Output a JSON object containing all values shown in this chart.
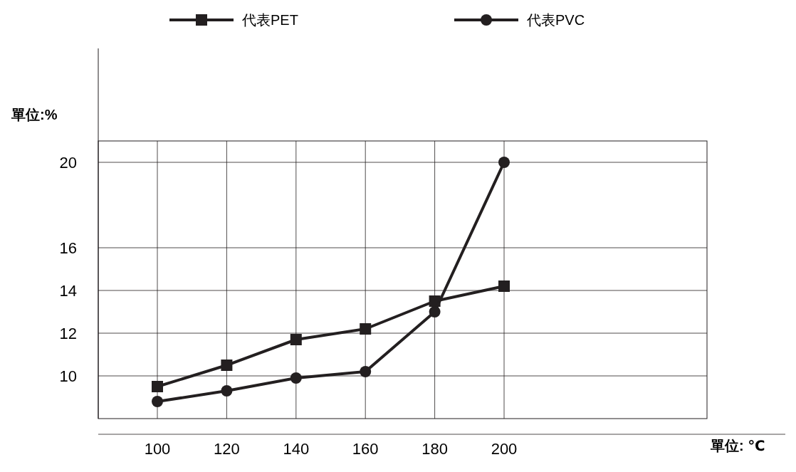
{
  "chart_data": {
    "type": "line",
    "annotations": [
      "單位: ℃"
    ],
    "ylabel": "單位:%",
    "categories": [
      "100",
      "120",
      "140",
      "160",
      "180",
      "200"
    ],
    "series": [
      {
        "name": "代表PET",
        "color": "#231f20",
        "marker": "square",
        "values": [
          9.5,
          10.5,
          11.7,
          12.2,
          13.5,
          14.2
        ]
      },
      {
        "name": "代表PVC",
        "color": "#231f20",
        "marker": "circle",
        "values": [
          8.8,
          9.3,
          9.9,
          10.2,
          13.0,
          20
        ]
      }
    ],
    "ylim": [
      8,
      21
    ],
    "yticks": [
      10,
      12,
      14,
      16,
      20
    ],
    "grid": true,
    "legend": "top",
    "line_style": "solid"
  }
}
